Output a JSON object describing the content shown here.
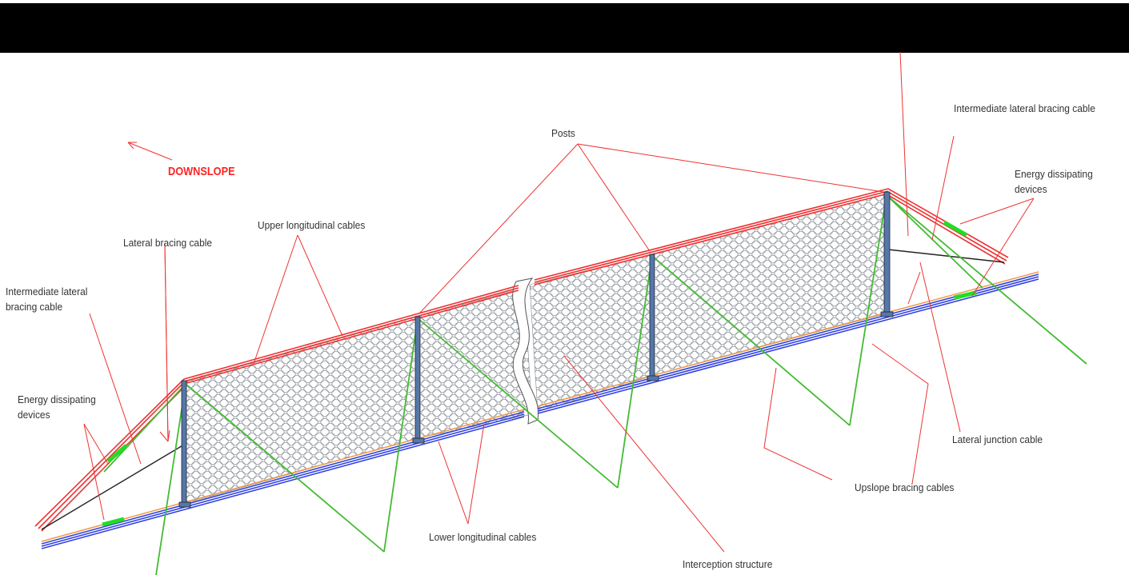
{
  "labels": {
    "downslope": "DOWNSLOPE",
    "posts": "Posts",
    "upper_longitudinal": "Upper longitudinal cables",
    "lateral_bracing": "Lateral bracing cable",
    "intermediate_left": "Intermediate lateral bracing cable",
    "intermediate_right": "Intermediate lateral bracing cable",
    "energy_left": "Energy dissipating devices",
    "energy_right": "Energy dissipating devices",
    "lower_longitudinal": "Lower longitudinal cables",
    "interception": "Interception structure",
    "lateral_junction": "Lateral junction cable",
    "upslope_bracing": "Upslope bracing cables"
  },
  "colors": {
    "upper_cable": "#ee3333",
    "lower_cable": "#3344dd",
    "bracing": "#44bb33",
    "energy_device": "#22dd22",
    "post": "#5577aa",
    "leader": "#ee3333",
    "junction": "#222222",
    "orange_cable": "#ee9944"
  }
}
